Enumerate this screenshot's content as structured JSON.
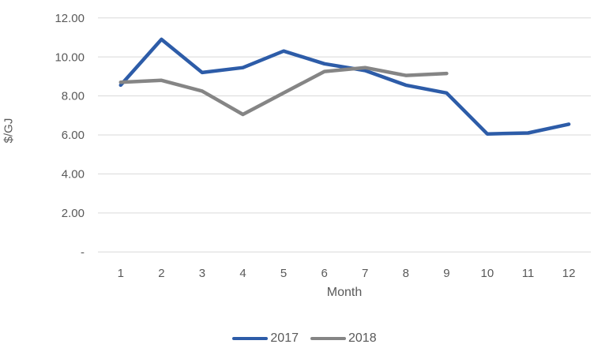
{
  "colors": {
    "gridline": "#D9D9D9",
    "axis_text": "#595959",
    "background": "#FFFFFF",
    "series_2017": "#2D5CA8",
    "series_2018": "#858585"
  },
  "chart_data": {
    "type": "line",
    "title": "",
    "xlabel": "Month",
    "ylabel": "$/GJ",
    "x": [
      1,
      2,
      3,
      4,
      5,
      6,
      7,
      8,
      9,
      10,
      11,
      12
    ],
    "ylim": [
      0,
      12
    ],
    "y_ticks": [
      0,
      2,
      4,
      6,
      8,
      10,
      12
    ],
    "y_tick_labels": [
      "-",
      "2.00",
      "4.00",
      "6.00",
      "8.00",
      "10.00",
      "12.00"
    ],
    "grid": true,
    "legend_position": "bottom-center",
    "series": [
      {
        "name": "2017",
        "color": "#2D5CA8",
        "values": [
          8.55,
          10.9,
          9.2,
          9.45,
          10.3,
          9.65,
          9.3,
          8.55,
          8.15,
          6.05,
          6.1,
          6.55
        ]
      },
      {
        "name": "2018",
        "color": "#858585",
        "values": [
          8.7,
          8.8,
          8.25,
          7.05,
          8.15,
          9.25,
          9.45,
          9.05,
          9.15,
          null,
          null,
          null
        ]
      }
    ]
  }
}
